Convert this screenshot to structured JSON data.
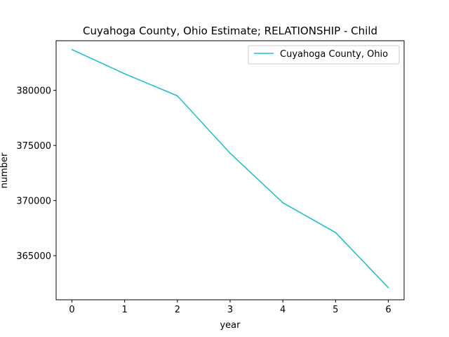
{
  "chart_data": {
    "type": "line",
    "title": "Cuyahoga County, Ohio Estimate; RELATIONSHIP - Child",
    "xlabel": "year",
    "ylabel": "number",
    "xlim": [
      -0.3,
      6.3
    ],
    "ylim": [
      361000,
      384500
    ],
    "x_ticks": [
      0,
      1,
      2,
      3,
      4,
      5,
      6
    ],
    "y_ticks": [
      365000,
      370000,
      375000,
      380000
    ],
    "grid": false,
    "legend_position": "top-right",
    "series": [
      {
        "name": "Cuyahoga County, Ohio",
        "color": "#17becf",
        "x": [
          0,
          1,
          2,
          3,
          4,
          5,
          6
        ],
        "y": [
          383700,
          381500,
          379500,
          374300,
          369800,
          367100,
          362100
        ]
      }
    ]
  }
}
